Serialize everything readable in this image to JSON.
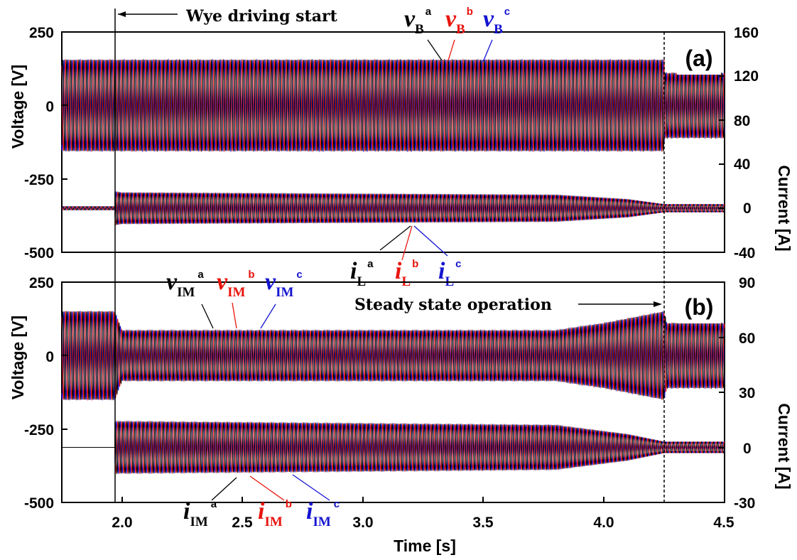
{
  "chart_data": [
    {
      "panel": "a",
      "type": "line",
      "panel_label": "(a)",
      "xlabel": "Time [s]",
      "ylabel_left": "Voltage [V]",
      "ylabel_right": "Current [A]",
      "xlim": [
        1.75,
        4.5
      ],
      "ylim_left": [
        -500,
        250
      ],
      "ylim_right": [
        -40,
        160
      ],
      "x_ticks": [
        "2.0",
        "2.5",
        "3.0",
        "3.5",
        "4.0",
        "4.5"
      ],
      "y_ticks_left": [
        "250",
        "0",
        "-250",
        "-500"
      ],
      "y_ticks_right": [
        "160",
        "120",
        "80",
        "40",
        "0",
        "-40"
      ],
      "annotations": [
        "Wye driving start"
      ],
      "event_times": [
        1.97,
        4.25
      ],
      "series": [
        {
          "name": "v_B^a",
          "axis": "left",
          "color": "#000000",
          "envelope": {
            "x": [
              1.75,
              4.25,
              4.25,
              4.5
            ],
            "amp": [
              155,
              155,
              110,
              110
            ]
          }
        },
        {
          "name": "v_B^b",
          "axis": "left",
          "color": "#e8140c",
          "envelope": {
            "x": [
              1.75,
              4.25,
              4.25,
              4.5
            ],
            "amp": [
              155,
              155,
              110,
              110
            ]
          }
        },
        {
          "name": "v_B^c",
          "axis": "left",
          "color": "#1414d0",
          "envelope": {
            "x": [
              1.75,
              4.25,
              4.25,
              4.5
            ],
            "amp": [
              155,
              155,
              110,
              110
            ]
          }
        },
        {
          "name": "i_L^a",
          "axis": "right",
          "color": "#000000",
          "envelope": {
            "x": [
              1.75,
              1.97,
              1.97,
              2.0,
              3.8,
              4.1,
              4.25,
              4.5
            ],
            "amp": [
              1.5,
              1.5,
              15,
              14,
              12,
              8,
              3.5,
              3.5
            ]
          }
        },
        {
          "name": "i_L^b",
          "axis": "right",
          "color": "#e8140c",
          "envelope": {
            "x": [
              1.75,
              1.97,
              1.97,
              2.0,
              3.8,
              4.1,
              4.25,
              4.5
            ],
            "amp": [
              1.5,
              1.5,
              15,
              14,
              12,
              8,
              3.5,
              3.5
            ]
          }
        },
        {
          "name": "i_L^c",
          "axis": "right",
          "color": "#1414d0",
          "envelope": {
            "x": [
              1.75,
              1.97,
              1.97,
              2.0,
              3.8,
              4.1,
              4.25,
              4.5
            ],
            "amp": [
              1.5,
              1.5,
              15,
              14,
              12,
              8,
              3.5,
              3.5
            ]
          }
        }
      ]
    },
    {
      "panel": "b",
      "type": "line",
      "panel_label": "(b)",
      "xlabel": "Time [s]",
      "ylabel_left": "Voltage [V]",
      "ylabel_right": "Current [A]",
      "xlim": [
        1.75,
        4.5
      ],
      "ylim_left": [
        -500,
        250
      ],
      "ylim_right": [
        -30,
        90
      ],
      "x_ticks": [
        "2.0",
        "2.5",
        "3.0",
        "3.5",
        "4.0",
        "4.5"
      ],
      "y_ticks_left": [
        "250",
        "0",
        "-250",
        "-500"
      ],
      "y_ticks_right": [
        "90",
        "60",
        "30",
        "0",
        "-30"
      ],
      "annotations": [
        "Steady state operation"
      ],
      "event_times": [
        1.97,
        4.25
      ],
      "series": [
        {
          "name": "v_IM^a",
          "axis": "left",
          "color": "#000000",
          "envelope": {
            "x": [
              1.75,
              1.97,
              2.0,
              3.8,
              4.0,
              4.25,
              4.26,
              4.5
            ],
            "amp": [
              150,
              150,
              85,
              85,
              110,
              150,
              110,
              110
            ]
          }
        },
        {
          "name": "v_IM^b",
          "axis": "left",
          "color": "#e8140c",
          "envelope": {
            "x": [
              1.75,
              1.97,
              2.0,
              3.8,
              4.0,
              4.25,
              4.26,
              4.5
            ],
            "amp": [
              150,
              150,
              85,
              85,
              110,
              150,
              110,
              110
            ]
          }
        },
        {
          "name": "v_IM^c",
          "axis": "left",
          "color": "#1414d0",
          "envelope": {
            "x": [
              1.75,
              1.97,
              2.0,
              3.8,
              4.0,
              4.25,
              4.26,
              4.5
            ],
            "amp": [
              150,
              150,
              85,
              85,
              110,
              150,
              110,
              110
            ]
          }
        },
        {
          "name": "i_IM^a",
          "axis": "right",
          "color": "#000000",
          "envelope": {
            "x": [
              1.75,
              1.97,
              1.97,
              2.0,
              3.8,
              4.1,
              4.25,
              4.5
            ],
            "amp": [
              0,
              0,
              14,
              14,
              12,
              7,
              3,
              3
            ]
          }
        },
        {
          "name": "i_IM^b",
          "axis": "right",
          "color": "#e8140c",
          "envelope": {
            "x": [
              1.75,
              1.97,
              1.97,
              2.0,
              3.8,
              4.1,
              4.25,
              4.5
            ],
            "amp": [
              0,
              0,
              14,
              14,
              12,
              7,
              3,
              3
            ]
          }
        },
        {
          "name": "i_IM^c",
          "axis": "right",
          "color": "#1414d0",
          "envelope": {
            "x": [
              1.75,
              1.97,
              1.97,
              2.0,
              3.8,
              4.1,
              4.25,
              4.5
            ],
            "amp": [
              0,
              0,
              14,
              14,
              12,
              7,
              3,
              3
            ]
          }
        }
      ]
    }
  ],
  "labels": {
    "a": {
      "v_base": "v",
      "v_sub": "B",
      "i_base": "i",
      "i_sub": "L",
      "sup_a": "a",
      "sup_b": "b",
      "sup_c": "c"
    },
    "b": {
      "v_base": "v",
      "v_sub": "IM",
      "i_base": "i",
      "i_sub": "IM",
      "sup_a": "a",
      "sup_b": "b",
      "sup_c": "c"
    }
  },
  "colors": {
    "phase_a": "#000000",
    "phase_b": "#e8140c",
    "phase_c": "#1414d0"
  }
}
